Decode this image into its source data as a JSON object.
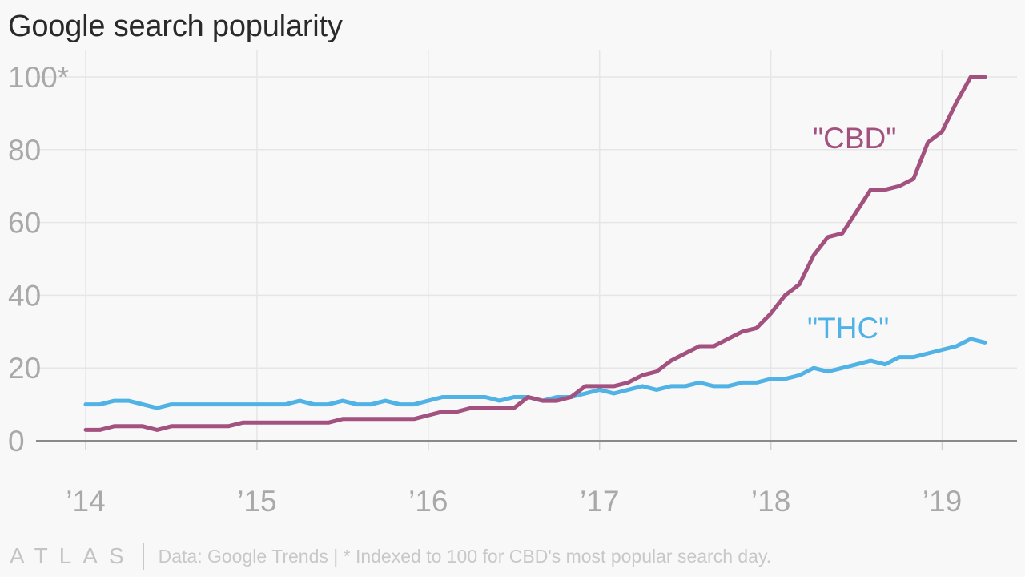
{
  "chart_data": {
    "type": "line",
    "title": "Google search popularity",
    "xlabel": "",
    "ylabel": "",
    "ylim": [
      0,
      100
    ],
    "yticks": [
      0,
      20,
      40,
      60,
      80,
      100
    ],
    "ytick_labels": [
      "0",
      "20",
      "40",
      "60",
      "80",
      "100*"
    ],
    "xlim": [
      2014.0,
      2019.25
    ],
    "xticks": [
      2014,
      2015,
      2016,
      2017,
      2018,
      2019
    ],
    "xtick_labels": [
      "’14",
      "’15",
      "’16",
      "’17",
      "’18",
      "’19"
    ],
    "grid": true,
    "legend": "inline labels",
    "series": [
      {
        "name": "\"CBD\"",
        "color": "#a3527f",
        "x": [
          2014.0,
          2014.083,
          2014.167,
          2014.25,
          2014.333,
          2014.417,
          2014.5,
          2014.583,
          2014.667,
          2014.75,
          2014.833,
          2014.917,
          2015.0,
          2015.083,
          2015.167,
          2015.25,
          2015.333,
          2015.417,
          2015.5,
          2015.583,
          2015.667,
          2015.75,
          2015.833,
          2015.917,
          2016.0,
          2016.083,
          2016.167,
          2016.25,
          2016.333,
          2016.417,
          2016.5,
          2016.583,
          2016.667,
          2016.75,
          2016.833,
          2016.917,
          2017.0,
          2017.083,
          2017.167,
          2017.25,
          2017.333,
          2017.417,
          2017.5,
          2017.583,
          2017.667,
          2017.75,
          2017.833,
          2017.917,
          2018.0,
          2018.083,
          2018.167,
          2018.25,
          2018.333,
          2018.417,
          2018.5,
          2018.583,
          2018.667,
          2018.75,
          2018.833,
          2018.917,
          2019.0,
          2019.083,
          2019.167,
          2019.25
        ],
        "values": [
          3,
          3,
          4,
          4,
          4,
          3,
          4,
          4,
          4,
          4,
          4,
          5,
          5,
          5,
          5,
          5,
          5,
          5,
          6,
          6,
          6,
          6,
          6,
          6,
          7,
          8,
          8,
          9,
          9,
          9,
          9,
          12,
          11,
          11,
          12,
          15,
          15,
          15,
          16,
          18,
          19,
          22,
          24,
          26,
          26,
          28,
          30,
          31,
          35,
          40,
          43,
          51,
          56,
          57,
          63,
          69,
          69,
          70,
          72,
          82,
          85,
          93,
          100,
          100
        ]
      },
      {
        "name": "\"THC\"",
        "color": "#51b2e5",
        "x": [
          2014.0,
          2014.083,
          2014.167,
          2014.25,
          2014.333,
          2014.417,
          2014.5,
          2014.583,
          2014.667,
          2014.75,
          2014.833,
          2014.917,
          2015.0,
          2015.083,
          2015.167,
          2015.25,
          2015.333,
          2015.417,
          2015.5,
          2015.583,
          2015.667,
          2015.75,
          2015.833,
          2015.917,
          2016.0,
          2016.083,
          2016.167,
          2016.25,
          2016.333,
          2016.417,
          2016.5,
          2016.583,
          2016.667,
          2016.75,
          2016.833,
          2016.917,
          2017.0,
          2017.083,
          2017.167,
          2017.25,
          2017.333,
          2017.417,
          2017.5,
          2017.583,
          2017.667,
          2017.75,
          2017.833,
          2017.917,
          2018.0,
          2018.083,
          2018.167,
          2018.25,
          2018.333,
          2018.417,
          2018.5,
          2018.583,
          2018.667,
          2018.75,
          2018.833,
          2018.917,
          2019.0,
          2019.083,
          2019.167,
          2019.25
        ],
        "values": [
          10,
          10,
          11,
          11,
          10,
          9,
          10,
          10,
          10,
          10,
          10,
          10,
          10,
          10,
          10,
          11,
          10,
          10,
          11,
          10,
          10,
          11,
          10,
          10,
          11,
          12,
          12,
          12,
          12,
          11,
          12,
          12,
          11,
          12,
          12,
          13,
          14,
          13,
          14,
          15,
          14,
          15,
          15,
          16,
          15,
          15,
          16,
          16,
          17,
          17,
          18,
          20,
          19,
          20,
          21,
          22,
          21,
          23,
          23,
          24,
          25,
          26,
          28,
          27
        ]
      }
    ]
  },
  "footer": {
    "logo": "ATLAS",
    "source": "Data: Google Trends | * Indexed to 100 for CBD's most popular search day."
  }
}
